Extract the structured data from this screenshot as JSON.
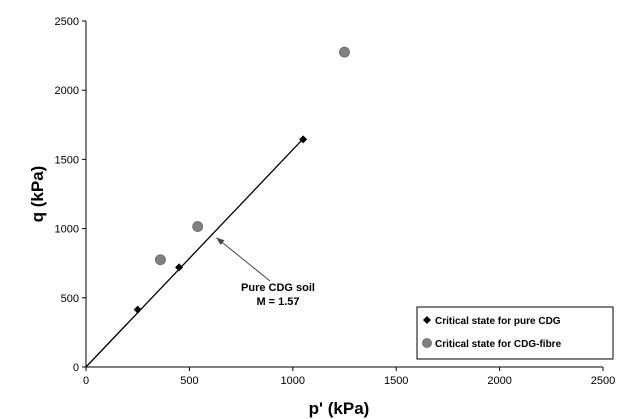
{
  "chart_data": {
    "type": "scatter",
    "xlabel": "p' (kPa)",
    "ylabel": "q (kPa)",
    "xlim": [
      0,
      2500
    ],
    "ylim": [
      0,
      2500
    ],
    "xticks": [
      0,
      500,
      1000,
      1500,
      2000,
      2500
    ],
    "yticks": [
      0,
      500,
      1000,
      1500,
      2000,
      2500
    ],
    "grid": false,
    "legend_position": "bottom-right",
    "series": [
      {
        "name": "Critical state for pure CDG",
        "marker": "diamond",
        "color": "#000000",
        "points": [
          [
            250,
            415
          ],
          [
            450,
            720
          ],
          [
            1050,
            1645
          ]
        ]
      },
      {
        "name": "Critical state for CDG-fibre",
        "marker": "circle",
        "color": "#808080",
        "points": [
          [
            360,
            775
          ],
          [
            540,
            1015
          ],
          [
            1250,
            2275
          ]
        ]
      }
    ],
    "fit_line": {
      "slope": 1.57,
      "from": [
        0,
        0
      ],
      "to": [
        1050,
        1648.5
      ]
    },
    "annotation": {
      "lines": [
        "Pure CDG soil",
        "M = 1.57"
      ],
      "target": [
        630,
        935
      ]
    }
  }
}
